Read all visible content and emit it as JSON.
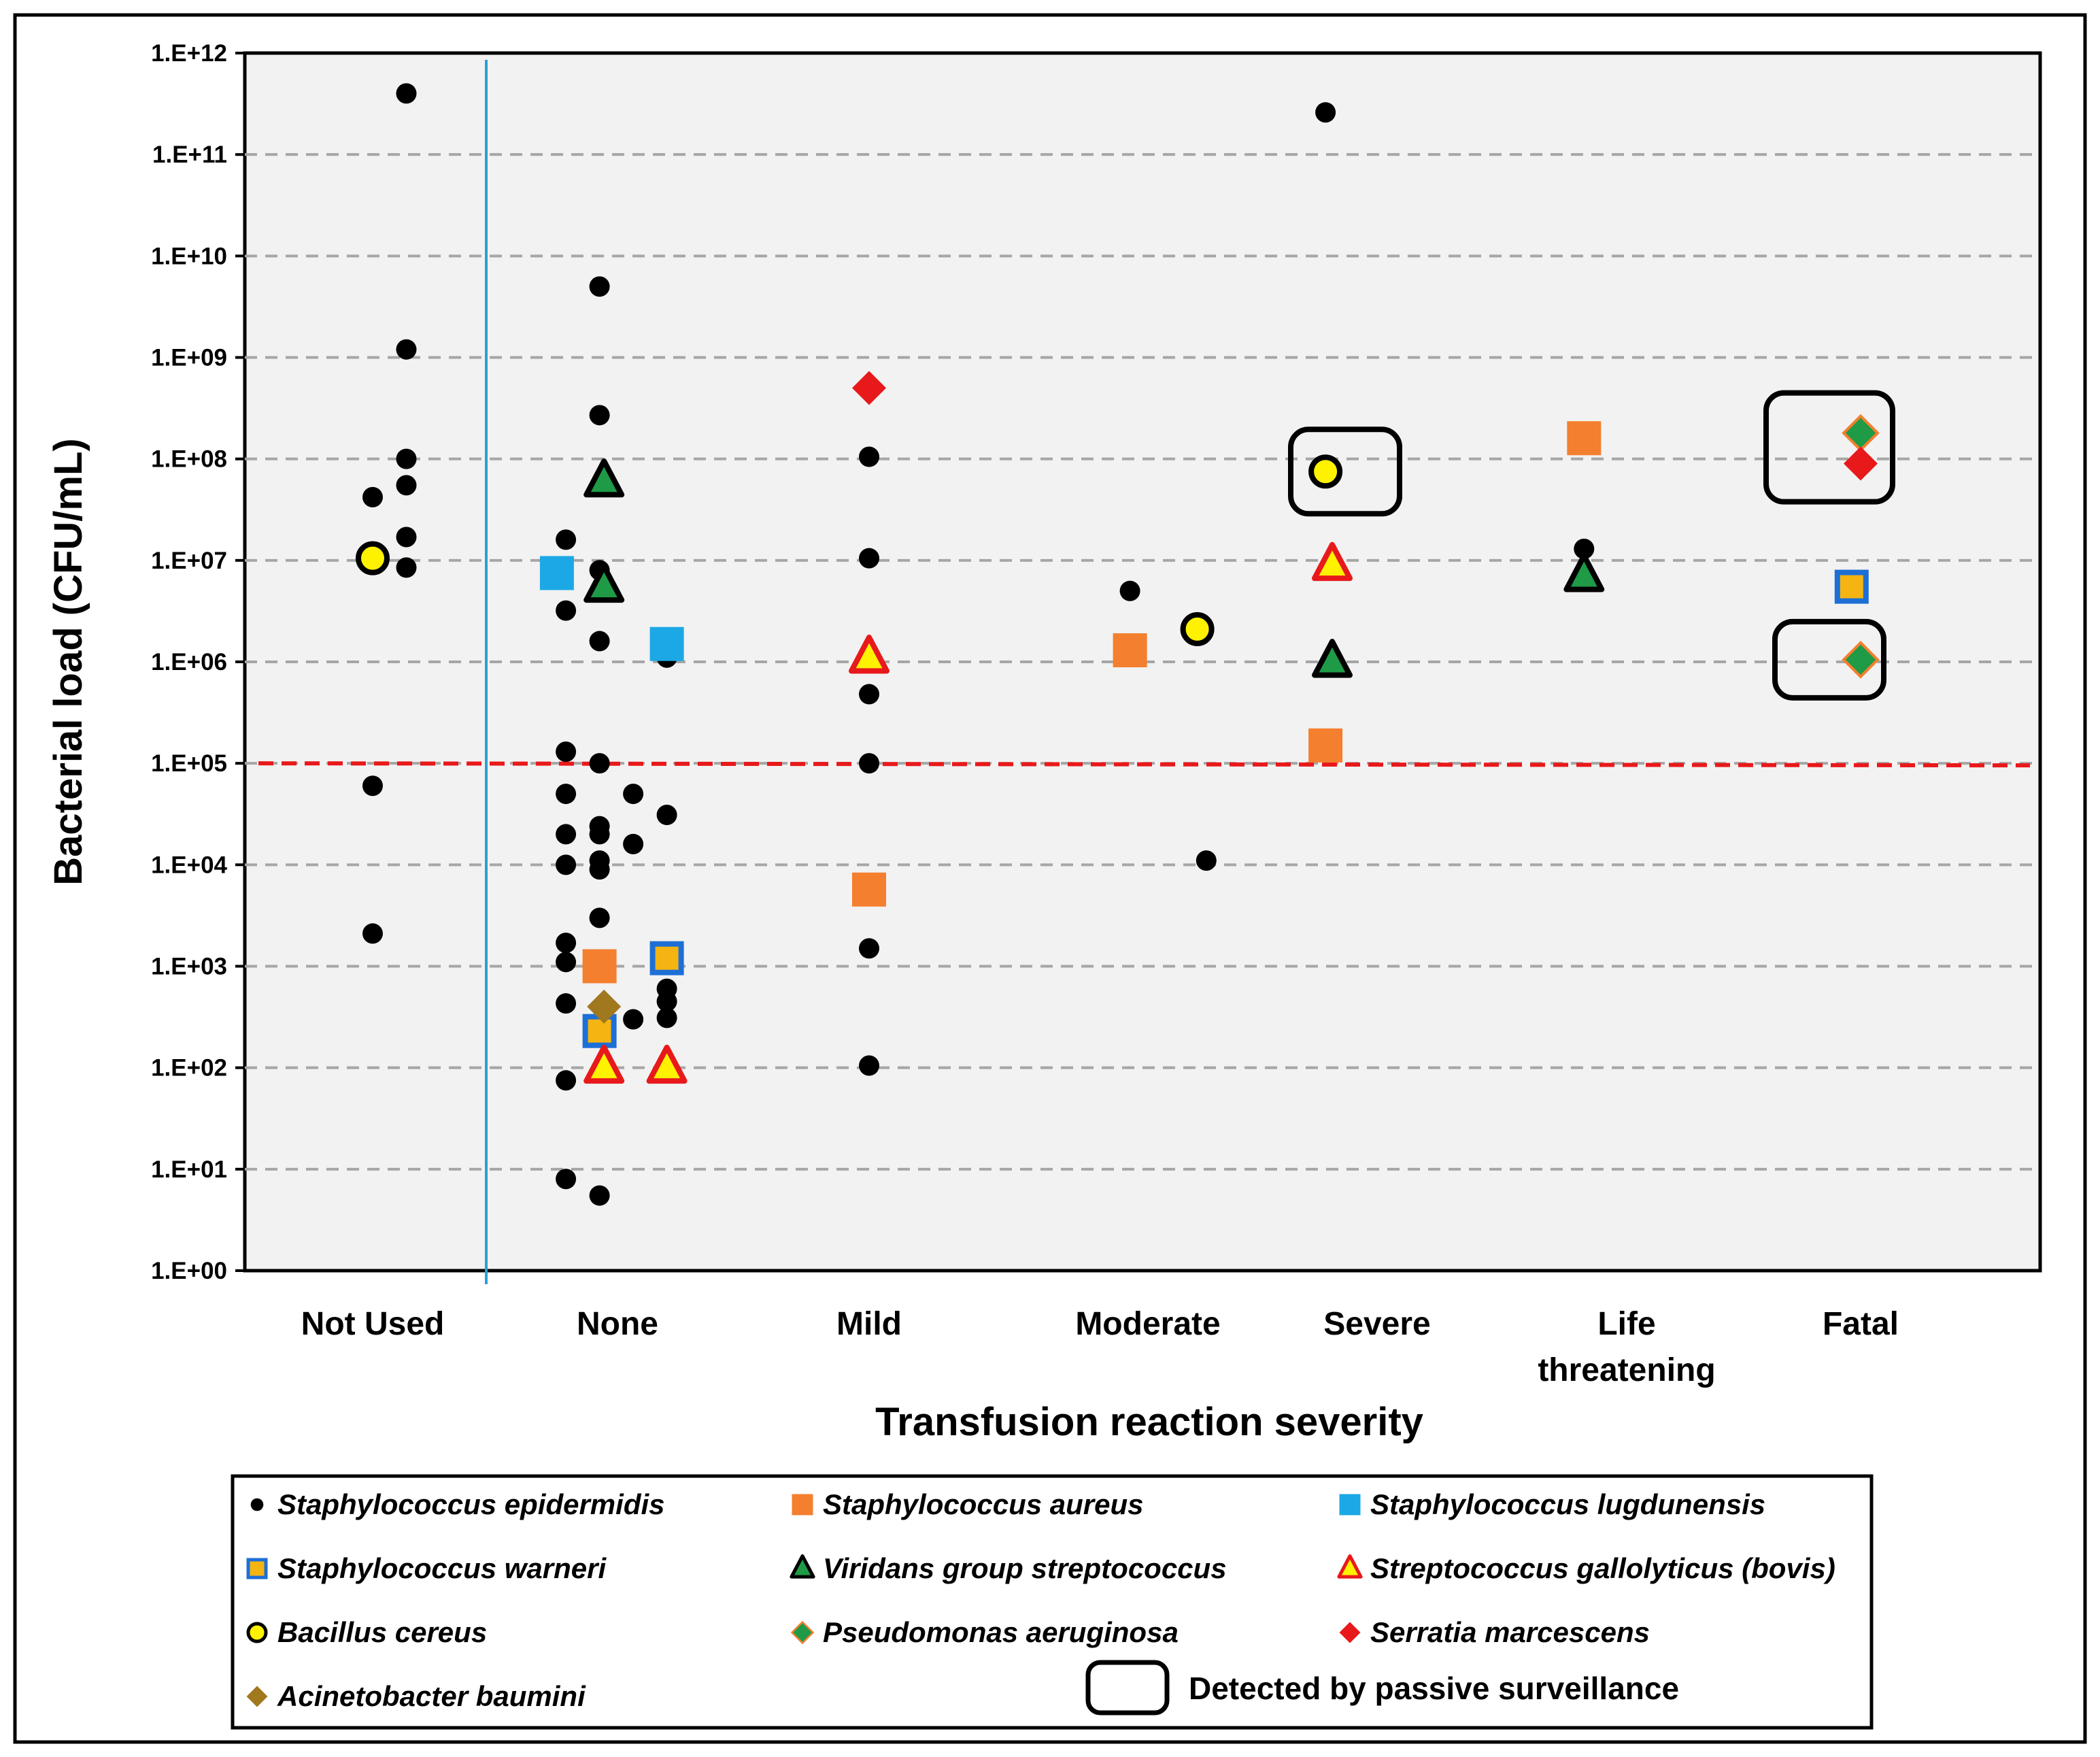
{
  "chart_data": {
    "type": "scatter",
    "title": "",
    "xlabel": "Transfusion reaction severity",
    "ylabel": "Bacterial load (CFU/mL)",
    "y_scale": "log10",
    "ylim": [
      1,
      1000000000000
    ],
    "ytick_labels": [
      "1.E+00",
      "1.E+01",
      "1.E+02",
      "1.E+03",
      "1.E+04",
      "1.E+05",
      "1.E+06",
      "1.E+07",
      "1.E+08",
      "1.E+09",
      "1.E+10",
      "1.E+11",
      "1.E+12"
    ],
    "categories": [
      {
        "label": "Not Used"
      },
      {
        "label": "None"
      },
      {
        "label": "Mild"
      },
      {
        "label": "Moderate"
      },
      {
        "label": "Severe"
      },
      {
        "label": "Life threatening"
      },
      {
        "label": "Fatal"
      }
    ],
    "threshold": {
      "value": 100000,
      "color": "#e8191b"
    },
    "separator_after_category": "Not Used",
    "grid": true,
    "legend": {
      "placement": "bottom",
      "passive_label": "Detected by passive surveillance"
    },
    "series": [
      {
        "name": "Staphylococcus epidermidis",
        "marker": "circle",
        "fill": "#000000",
        "stroke": "#000000",
        "points": [
          {
            "cat": "Not Used",
            "y": 400000000000,
            "j": 0.15
          },
          {
            "cat": "Not Used",
            "y": 1200000000,
            "j": 0.15
          },
          {
            "cat": "Not Used",
            "y": 100000000,
            "j": 0.15
          },
          {
            "cat": "Not Used",
            "y": 55000000,
            "j": 0.15
          },
          {
            "cat": "Not Used",
            "y": 42000000,
            "j": 0
          },
          {
            "cat": "Not Used",
            "y": 17000000,
            "j": 0.15
          },
          {
            "cat": "Not Used",
            "y": 8500000,
            "j": 0.15
          },
          {
            "cat": "Not Used",
            "y": 60000,
            "j": 0
          },
          {
            "cat": "Not Used",
            "y": 2100,
            "j": 0
          },
          {
            "cat": "None",
            "y": 5000000000,
            "j": -0.08
          },
          {
            "cat": "None",
            "y": 270000000,
            "j": -0.08
          },
          {
            "cat": "None",
            "y": 16000000,
            "j": -0.23
          },
          {
            "cat": "None",
            "y": 8000000,
            "j": -0.08
          },
          {
            "cat": "None",
            "y": 3200000,
            "j": -0.23
          },
          {
            "cat": "None",
            "y": 1600000,
            "j": -0.08
          },
          {
            "cat": "None",
            "y": 1100000,
            "j": 0.22
          },
          {
            "cat": "None",
            "y": 130000,
            "j": -0.23
          },
          {
            "cat": "None",
            "y": 100000,
            "j": -0.08
          },
          {
            "cat": "None",
            "y": 50000,
            "j": -0.23
          },
          {
            "cat": "None",
            "y": 50000,
            "j": 0.07
          },
          {
            "cat": "None",
            "y": 31000,
            "j": 0.22
          },
          {
            "cat": "None",
            "y": 24000,
            "j": -0.08
          },
          {
            "cat": "None",
            "y": 20000,
            "j": -0.23
          },
          {
            "cat": "None",
            "y": 20000,
            "j": -0.08
          },
          {
            "cat": "None",
            "y": 16000,
            "j": 0.07
          },
          {
            "cat": "None",
            "y": 11000,
            "j": -0.08
          },
          {
            "cat": "None",
            "y": 10000,
            "j": -0.23
          },
          {
            "cat": "None",
            "y": 9000,
            "j": -0.08
          },
          {
            "cat": "None",
            "y": 3000,
            "j": -0.08
          },
          {
            "cat": "None",
            "y": 1700,
            "j": -0.23
          },
          {
            "cat": "None",
            "y": 1100,
            "j": -0.23
          },
          {
            "cat": "None",
            "y": 600,
            "j": 0.22
          },
          {
            "cat": "None",
            "y": 450,
            "j": 0.22
          },
          {
            "cat": "None",
            "y": 430,
            "j": -0.23
          },
          {
            "cat": "None",
            "y": 300,
            "j": 0.07
          },
          {
            "cat": "None",
            "y": 280,
            "j": -0.08
          },
          {
            "cat": "None",
            "y": 310,
            "j": 0.22
          },
          {
            "cat": "None",
            "y": 75,
            "j": -0.23
          },
          {
            "cat": "None",
            "y": 8,
            "j": -0.23
          },
          {
            "cat": "None",
            "y": 5.5,
            "j": -0.08
          },
          {
            "cat": "Mild",
            "y": 105000000,
            "j": 0
          },
          {
            "cat": "Mild",
            "y": 10500000,
            "j": 0
          },
          {
            "cat": "Mild",
            "y": 480000,
            "j": 0
          },
          {
            "cat": "Mild",
            "y": 100000,
            "j": 0
          },
          {
            "cat": "Mild",
            "y": 1500,
            "j": 0
          },
          {
            "cat": "Mild",
            "y": 105,
            "j": 0
          },
          {
            "cat": "Moderate",
            "y": 5000000,
            "j": -0.08
          },
          {
            "cat": "Moderate",
            "y": 11000,
            "j": 0.26
          },
          {
            "cat": "Severe",
            "y": 260000000000,
            "j": -0.23
          },
          {
            "cat": "Life threatening",
            "y": 13000000,
            "j": -0.19
          }
        ]
      },
      {
        "name": "Staphylococcus aureus",
        "marker": "square",
        "fill": "#f47f2e",
        "stroke": "#f47f2e",
        "points": [
          {
            "cat": "None",
            "y": 1000,
            "j": -0.08
          },
          {
            "cat": "Mild",
            "y": 5700,
            "j": 0
          },
          {
            "cat": "Moderate",
            "y": 1300000,
            "j": -0.08
          },
          {
            "cat": "Severe",
            "y": 150000,
            "j": -0.23
          },
          {
            "cat": "Life threatening",
            "y": 160000000,
            "j": -0.19
          }
        ]
      },
      {
        "name": "Staphylococcus lugdunensis",
        "marker": "square",
        "fill": "#1ca8e6",
        "stroke": "#1ca8e6",
        "points": [
          {
            "cat": "None",
            "y": 7500000,
            "j": -0.27
          },
          {
            "cat": "None",
            "y": 1500000,
            "j": 0.22
          }
        ]
      },
      {
        "name": "Staphylococcus warneri",
        "marker": "square",
        "fill": "#f5b412",
        "stroke": "#1d6fd6",
        "points": [
          {
            "cat": "None",
            "y": 1200,
            "j": 0.22
          },
          {
            "cat": "None",
            "y": 230,
            "j": -0.08
          },
          {
            "cat": "Fatal",
            "y": 5500000,
            "j": -0.04
          }
        ]
      },
      {
        "name": "Viridans group streptococcus",
        "marker": "triangle",
        "fill": "#1f9a46",
        "stroke": "#000000",
        "points": [
          {
            "cat": "None",
            "y": 60000000,
            "j": -0.06
          },
          {
            "cat": "None",
            "y": 5500000,
            "j": -0.06
          },
          {
            "cat": "Severe",
            "y": 1000000,
            "j": -0.2
          },
          {
            "cat": "Life threatening",
            "y": 7000000,
            "j": -0.19
          }
        ]
      },
      {
        "name": "Streptococcus gallolyticus (bovis)",
        "marker": "triangle",
        "fill": "#fff200",
        "stroke": "#e8191b",
        "points": [
          {
            "cat": "None",
            "y": 100,
            "j": -0.06
          },
          {
            "cat": "None",
            "y": 100,
            "j": 0.22
          },
          {
            "cat": "Mild",
            "y": 1100000,
            "j": 0
          },
          {
            "cat": "Severe",
            "y": 9000000,
            "j": -0.2
          }
        ]
      },
      {
        "name": "Bacillus cereus",
        "marker": "circle",
        "fill": "#fff200",
        "stroke": "#000000",
        "points": [
          {
            "cat": "Not Used",
            "y": 10500000,
            "j": 0
          },
          {
            "cat": "Moderate",
            "y": 2100000,
            "j": 0.22
          },
          {
            "cat": "Severe",
            "y": 75000000,
            "j": -0.23
          }
        ]
      },
      {
        "name": "Pseudomonas aeruginosa",
        "marker": "diamond",
        "fill": "#1f9a46",
        "stroke": "#f47f2e",
        "points": [
          {
            "cat": "Fatal",
            "y": 180000000,
            "j": 0
          },
          {
            "cat": "Fatal",
            "y": 1050000,
            "j": 0
          }
        ]
      },
      {
        "name": "Serratia marcescens",
        "marker": "diamond",
        "fill": "#e8191b",
        "stroke": "#e8191b",
        "points": [
          {
            "cat": "Mild",
            "y": 500000000,
            "j": 0
          },
          {
            "cat": "Fatal",
            "y": 90000000,
            "j": 0
          }
        ]
      },
      {
        "name": "Acinetobacter baumini",
        "marker": "diamond",
        "fill": "#a0781e",
        "stroke": "#a0781e",
        "points": [
          {
            "cat": "None",
            "y": 400,
            "j": -0.06
          }
        ]
      }
    ],
    "passive_surveillance_boxes": [
      {
        "cat": "Severe",
        "y": 75000000
      },
      {
        "cat": "Fatal",
        "y": 130000000
      },
      {
        "cat": "Fatal",
        "y": 1050000
      }
    ]
  }
}
